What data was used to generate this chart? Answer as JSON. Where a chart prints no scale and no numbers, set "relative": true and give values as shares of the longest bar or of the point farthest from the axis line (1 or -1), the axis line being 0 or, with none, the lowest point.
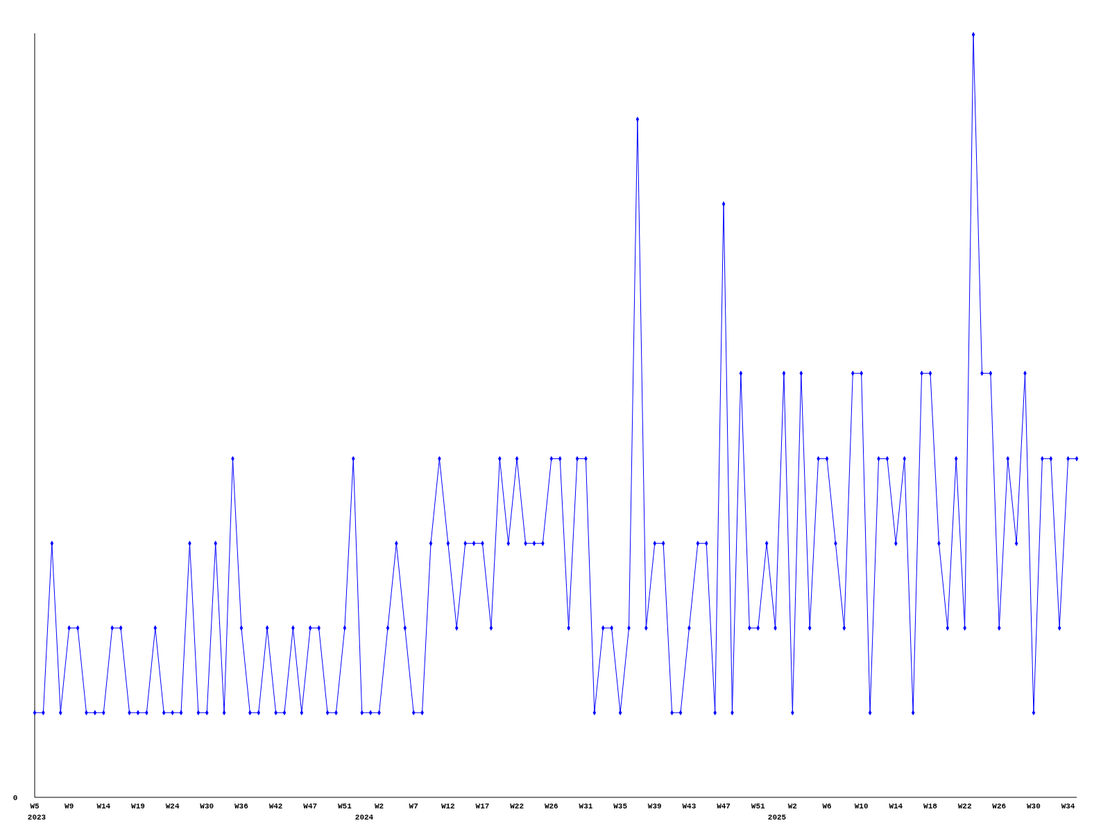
{
  "chart_data": {
    "type": "line",
    "relative": true,
    "color": "#0000ff",
    "marker": "diamond",
    "line_style": "solid",
    "grid": false,
    "categories": [
      "W5",
      null,
      null,
      null,
      "W9",
      null,
      null,
      null,
      "W14",
      null,
      null,
      null,
      "W19",
      null,
      null,
      null,
      "W24",
      null,
      null,
      null,
      "W30",
      null,
      null,
      null,
      "W36",
      null,
      null,
      null,
      "W42",
      null,
      null,
      null,
      "W47",
      null,
      null,
      null,
      "W51",
      null,
      null,
      null,
      "W2",
      null,
      null,
      null,
      "W7",
      null,
      null,
      null,
      "W12",
      null,
      null,
      null,
      "W17",
      null,
      null,
      null,
      "W22",
      null,
      null,
      null,
      "W26",
      null,
      null,
      null,
      "W31",
      null,
      null,
      null,
      "W35",
      null,
      null,
      null,
      "W39",
      null,
      null,
      null,
      "W43",
      null,
      null,
      null,
      "W47",
      null,
      null,
      null,
      "W51",
      null,
      null,
      null,
      "W2",
      null,
      null,
      null,
      "W6",
      null,
      null,
      null,
      "W10",
      null,
      null,
      null,
      "W14",
      null,
      null,
      null,
      "W18",
      null,
      null,
      null,
      "W22",
      null,
      null,
      null,
      "W26",
      null,
      null,
      null,
      "W30",
      null,
      null,
      null,
      "W34",
      null
    ],
    "values": [
      0.111,
      0.111,
      0.333,
      0.111,
      0.222,
      0.222,
      0.111,
      0.111,
      0.111,
      0.222,
      0.222,
      0.111,
      0.111,
      0.111,
      0.222,
      0.111,
      0.111,
      0.111,
      0.333,
      0.111,
      0.111,
      0.333,
      0.111,
      0.444,
      0.222,
      0.111,
      0.111,
      0.222,
      0.111,
      0.111,
      0.222,
      0.111,
      0.222,
      0.222,
      0.111,
      0.111,
      0.222,
      0.444,
      0.111,
      0.111,
      0.111,
      0.222,
      0.333,
      0.222,
      0.111,
      0.111,
      0.333,
      0.444,
      0.333,
      0.222,
      0.333,
      0.333,
      0.333,
      0.222,
      0.444,
      0.333,
      0.444,
      0.333,
      0.333,
      0.333,
      0.444,
      0.444,
      0.222,
      0.444,
      0.444,
      0.111,
      0.222,
      0.222,
      0.111,
      0.222,
      0.889,
      0.222,
      0.333,
      0.333,
      0.111,
      0.111,
      0.222,
      0.333,
      0.333,
      0.111,
      0.778,
      0.111,
      0.556,
      0.222,
      0.222,
      0.333,
      0.222,
      0.556,
      0.111,
      0.556,
      0.222,
      0.444,
      0.444,
      0.333,
      0.222,
      0.556,
      0.556,
      0.111,
      0.444,
      0.444,
      0.333,
      0.444,
      0.111,
      0.556,
      0.556,
      0.333,
      0.222,
      0.444,
      0.222,
      1,
      0.556,
      0.556,
      0.222,
      0.444,
      0.333,
      0.556,
      0.111,
      0.444,
      0.444,
      0.222,
      0.444,
      0.444
    ],
    "annotations": [
      "0",
      "2023",
      "2024",
      "2025"
    ]
  }
}
